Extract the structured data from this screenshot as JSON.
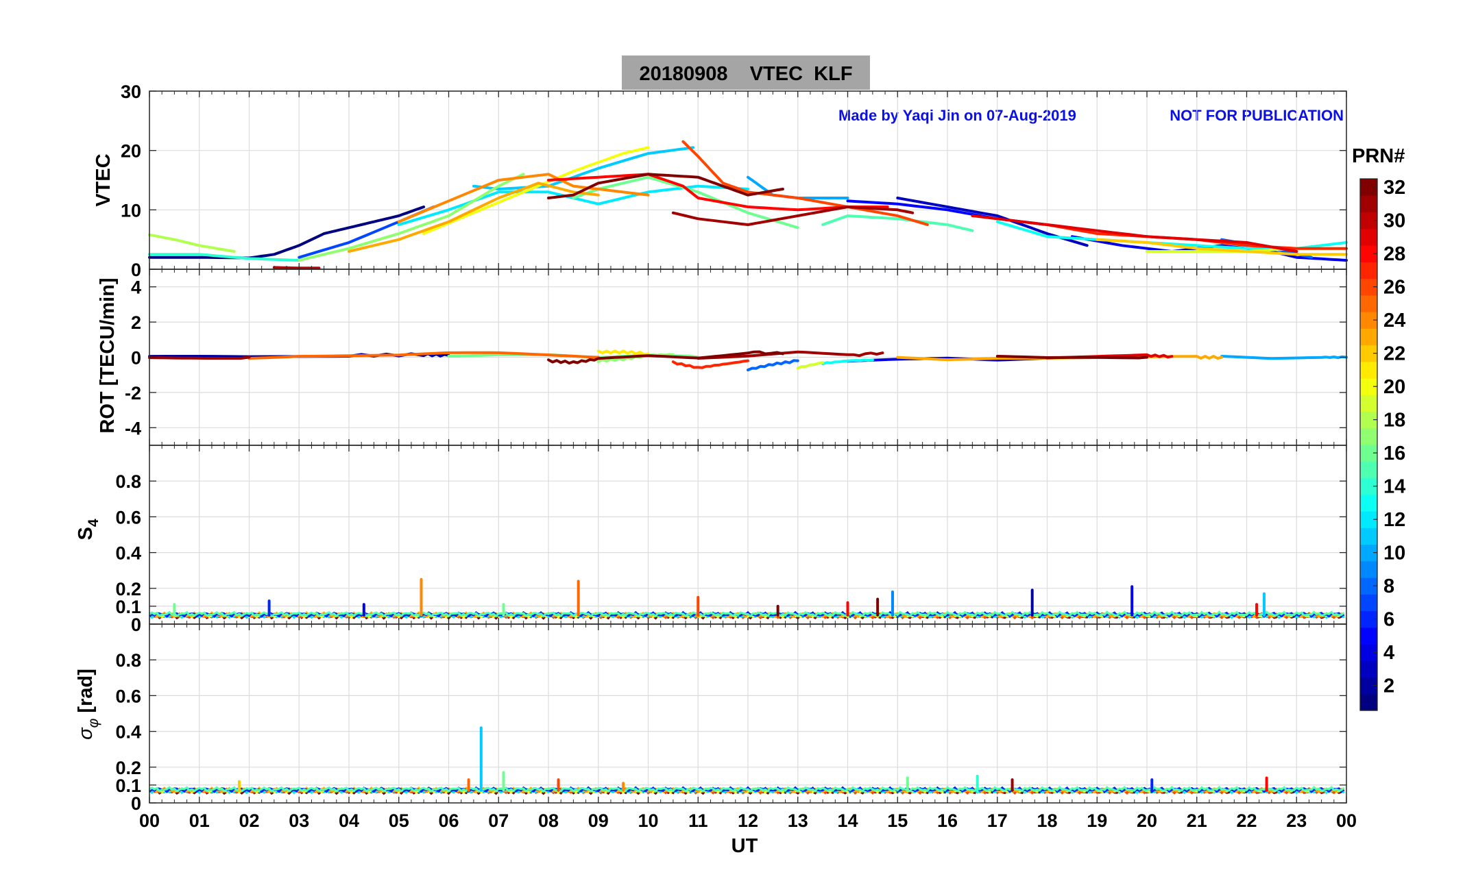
{
  "chart_data": {
    "type": "line",
    "title": "20180908    VTEC  KLF",
    "annotations": {
      "made_by": "Made by Yaqi Jin on 07-Aug-2019",
      "disclaimer": "NOT FOR PUBLICATION"
    },
    "xlabel": "UT",
    "x_ticks": [
      "00",
      "01",
      "02",
      "03",
      "04",
      "05",
      "06",
      "07",
      "08",
      "09",
      "10",
      "11",
      "12",
      "13",
      "14",
      "15",
      "16",
      "17",
      "18",
      "19",
      "20",
      "21",
      "22",
      "23",
      "00"
    ],
    "xlim": [
      0,
      24
    ],
    "grid": true,
    "colorbar": {
      "label": "PRN#",
      "ticks": [
        "2",
        "4",
        "6",
        "8",
        "10",
        "12",
        "14",
        "16",
        "18",
        "20",
        "22",
        "24",
        "26",
        "28",
        "30",
        "32"
      ],
      "range": [
        1,
        32
      ],
      "colormap": "jet"
    },
    "panels": [
      {
        "id": "vtec",
        "ylabel": "VTEC",
        "ylim": [
          0,
          30
        ],
        "y_ticks": [
          "0",
          "10",
          "20",
          "30"
        ],
        "series": [
          {
            "prn": 1,
            "x": [
              0.0,
              1.0,
              2.0,
              2.5,
              3.0,
              3.5,
              4.0,
              4.5,
              5.0,
              5.5
            ],
            "y": [
              2.0,
              2.0,
              1.9,
              2.5,
              4.0,
              6.0,
              7.0,
              8.0,
              9.0,
              10.5
            ]
          },
          {
            "prn": 3,
            "x": [
              15.0,
              16.0,
              17.0,
              18.0,
              18.8
            ],
            "y": [
              12.0,
              10.5,
              9.0,
              6.0,
              4.0
            ]
          },
          {
            "prn": 4,
            "x": [
              18.5,
              19.5,
              20.5,
              21.5,
              22.5,
              23.0,
              24.0
            ],
            "y": [
              5.5,
              4.0,
              3.0,
              4.0,
              3.0,
              2.0,
              1.5
            ]
          },
          {
            "prn": 5,
            "x": [
              14.0,
              15.0,
              16.0,
              17.0,
              18.0
            ],
            "y": [
              11.5,
              11.0,
              10.0,
              8.5,
              7.5
            ]
          },
          {
            "prn": 7,
            "x": [
              3.0,
              4.0,
              5.0,
              5.7
            ],
            "y": [
              2.0,
              4.5,
              8.0,
              10.5
            ]
          },
          {
            "prn": 8,
            "x": [
              21.5,
              22.5,
              23.3
            ],
            "y": [
              5.0,
              3.5,
              2.0
            ]
          },
          {
            "prn": 10,
            "x": [
              12.0,
              12.5,
              13.0,
              14.0
            ],
            "y": [
              15.5,
              12.5,
              12.0,
              12.0
            ]
          },
          {
            "prn": 11,
            "x": [
              6.5,
              7.0,
              8.0,
              9.0,
              10.0,
              10.9
            ],
            "y": [
              14.0,
              13.5,
              14.0,
              17.0,
              19.5,
              20.5
            ]
          },
          {
            "prn": 12,
            "x": [
              5.0,
              6.0,
              7.0,
              8.0,
              9.0,
              10.0,
              11.0,
              12.0
            ],
            "y": [
              7.5,
              10.0,
              13.0,
              13.0,
              11.0,
              13.0,
              14.0,
              13.5
            ]
          },
          {
            "prn": 13,
            "x": [
              17.0,
              18.0,
              19.0,
              20.0,
              21.0,
              22.0,
              23.0,
              24.0
            ],
            "y": [
              8.0,
              5.5,
              5.0,
              4.5,
              4.0,
              3.5,
              3.5,
              4.5
            ]
          },
          {
            "prn": 14,
            "x": [
              0.0,
              1.0,
              2.0,
              3.0
            ],
            "y": [
              2.5,
              2.5,
              1.8,
              1.5
            ]
          },
          {
            "prn": 15,
            "x": [
              13.5,
              14.0,
              15.0,
              16.0,
              16.5
            ],
            "y": [
              7.5,
              9.0,
              8.5,
              7.5,
              6.5
            ]
          },
          {
            "prn": 16,
            "x": [
              8.5,
              9.0,
              10.0,
              11.0,
              12.0,
              13.0
            ],
            "y": [
              12.0,
              13.5,
              15.5,
              13.0,
              9.5,
              7.0
            ]
          },
          {
            "prn": 17,
            "x": [
              3.0,
              4.0,
              5.0,
              6.0,
              7.0,
              7.5
            ],
            "y": [
              1.5,
              3.5,
              6.0,
              9.0,
              14.0,
              16.0
            ]
          },
          {
            "prn": 18,
            "x": [
              0.0,
              0.5,
              1.0,
              1.7
            ],
            "y": [
              5.8,
              5.0,
              4.0,
              3.0
            ]
          },
          {
            "prn": 19,
            "x": [
              20.0,
              21.0,
              22.0,
              23.0,
              24.0
            ],
            "y": [
              3.0,
              3.0,
              3.0,
              3.5,
              3.5
            ]
          },
          {
            "prn": 20,
            "x": [
              5.5,
              6.5,
              7.5,
              8.5,
              9.5,
              10.0
            ],
            "y": [
              6.0,
              9.5,
              13.0,
              16.5,
              19.5,
              20.5
            ]
          },
          {
            "prn": 22,
            "x": [
              19.0,
              20.0,
              21.0,
              22.0,
              23.0,
              24.0
            ],
            "y": [
              5.0,
              4.5,
              3.5,
              3.0,
              2.5,
              2.5
            ]
          },
          {
            "prn": 23,
            "x": [
              4.0,
              5.0,
              6.0,
              7.0,
              7.8,
              8.5,
              9.0
            ],
            "y": [
              3.0,
              5.0,
              8.0,
              12.0,
              14.5,
              13.0,
              12.5
            ]
          },
          {
            "prn": 24,
            "x": [
              5.0,
              6.0,
              7.0,
              8.0,
              8.5,
              9.0,
              9.5,
              10.0
            ],
            "y": [
              8.0,
              11.5,
              15.0,
              16.0,
              14.0,
              13.5,
              13.0,
              12.5
            ]
          },
          {
            "prn": 26,
            "x": [
              10.7,
              11.0,
              11.5,
              12.0,
              13.0,
              14.0,
              15.0,
              15.6
            ],
            "y": [
              21.5,
              19.0,
              14.5,
              13.0,
              12.0,
              10.5,
              9.0,
              7.5
            ]
          },
          {
            "prn": 27,
            "x": [
              18.0,
              19.0,
              20.0,
              21.0,
              22.0,
              23.0,
              24.0
            ],
            "y": [
              7.5,
              6.0,
              5.5,
              5.0,
              4.0,
              3.5,
              3.5
            ]
          },
          {
            "prn": 28,
            "x": [
              8.0,
              9.0,
              10.0,
              10.7,
              11.0,
              12.0,
              13.0,
              14.0,
              14.8
            ],
            "y": [
              15.0,
              15.5,
              16.0,
              14.0,
              12.0,
              10.5,
              10.0,
              10.5,
              10.5
            ]
          },
          {
            "prn": 29,
            "x": [
              16.5,
              17.0,
              18.0,
              19.0,
              20.0,
              21.0,
              22.0,
              23.0
            ],
            "y": [
              9.0,
              8.5,
              7.5,
              6.5,
              5.5,
              5.0,
              4.5,
              3.0
            ]
          },
          {
            "prn": 30,
            "x": [
              2.5,
              3.0,
              3.4
            ],
            "y": [
              0.3,
              0.2,
              0.2
            ]
          },
          {
            "prn": 31,
            "x": [
              10.5,
              11.0,
              12.0,
              13.0,
              14.0,
              15.0,
              15.3
            ],
            "y": [
              9.5,
              8.5,
              7.5,
              9.0,
              10.5,
              10.0,
              9.5
            ]
          },
          {
            "prn": 32,
            "x": [
              8.0,
              8.5,
              9.0,
              10.0,
              11.0,
              11.5,
              12.0,
              12.7
            ],
            "y": [
              12.0,
              12.5,
              14.5,
              16.0,
              15.5,
              14.0,
              12.5,
              13.5
            ]
          }
        ]
      },
      {
        "id": "rot",
        "ylabel": "ROT [TECU/min]",
        "ylim": [
          -5,
          5
        ],
        "y_ticks": [
          "-4",
          "-2",
          "0",
          "2",
          "4"
        ],
        "series": [
          {
            "prn": 2,
            "x": [
              0.0,
              2.0,
              4.0,
              5.5,
              6.0
            ],
            "y": [
              0.0,
              0.0,
              0.1,
              0.15,
              0.1
            ]
          },
          {
            "prn": 4,
            "x": [
              14.0,
              15.0,
              16.0,
              17.0,
              18.0,
              19.0
            ],
            "y": [
              -0.25,
              -0.1,
              0.0,
              -0.1,
              0.0,
              0.0
            ]
          },
          {
            "prn": 8,
            "x": [
              12.0,
              12.5,
              13.0
            ],
            "y": [
              -0.7,
              -0.4,
              -0.2
            ]
          },
          {
            "prn": 10,
            "x": [
              21.5,
              22.5,
              23.5,
              24.0
            ],
            "y": [
              0.0,
              -0.1,
              0.0,
              0.0
            ]
          },
          {
            "prn": 13,
            "x": [
              13.5,
              14.0,
              14.5
            ],
            "y": [
              -0.35,
              -0.2,
              -0.15
            ]
          },
          {
            "prn": 16,
            "x": [
              6.0,
              7.0,
              8.0,
              9.0,
              10.0,
              11.0
            ],
            "y": [
              0.1,
              0.2,
              0.2,
              0.0,
              0.1,
              0.0
            ]
          },
          {
            "prn": 17,
            "x": [
              9.0,
              9.5,
              10.0,
              10.5
            ],
            "y": [
              -0.2,
              -0.1,
              0.1,
              0.15
            ]
          },
          {
            "prn": 19,
            "x": [
              13.0,
              13.5
            ],
            "y": [
              -0.6,
              -0.3
            ]
          },
          {
            "prn": 21,
            "x": [
              9.0,
              9.5,
              10.0
            ],
            "y": [
              0.3,
              0.3,
              0.2
            ]
          },
          {
            "prn": 23,
            "x": [
              15.0,
              16.0,
              17.0,
              18.0,
              19.0,
              20.0,
              21.0,
              21.5
            ],
            "y": [
              0.0,
              -0.1,
              0.0,
              0.0,
              0.0,
              0.0,
              0.0,
              0.0
            ]
          },
          {
            "prn": 25,
            "x": [
              2.0,
              3.0,
              4.0,
              5.0,
              6.0,
              7.0,
              8.0,
              9.0
            ],
            "y": [
              0.0,
              0.1,
              0.1,
              0.1,
              0.2,
              0.2,
              0.1,
              0.0
            ]
          },
          {
            "prn": 27,
            "x": [
              10.5,
              11.0,
              11.5,
              12.0
            ],
            "y": [
              -0.3,
              -0.6,
              -0.4,
              -0.2
            ]
          },
          {
            "prn": 29,
            "x": [
              18.0,
              19.0,
              20.0,
              20.5
            ],
            "y": [
              0.0,
              0.05,
              0.1,
              0.05
            ]
          },
          {
            "prn": 31,
            "x": [
              0.0,
              1.0,
              2.0
            ],
            "y": [
              0.0,
              0.0,
              0.0
            ]
          },
          {
            "prn": 31,
            "x": [
              11.0,
              12.0,
              13.0,
              14.0,
              14.7
            ],
            "y": [
              0.0,
              0.1,
              0.3,
              0.1,
              0.25
            ]
          },
          {
            "prn": 32,
            "x": [
              8.0,
              8.5,
              9.0,
              10.0,
              11.0,
              12.0,
              12.7
            ],
            "y": [
              -0.2,
              -0.3,
              -0.1,
              0.1,
              0.0,
              0.3,
              0.2
            ]
          },
          {
            "prn": 32,
            "x": [
              17.0,
              18.0,
              19.0,
              20.0
            ],
            "y": [
              0.0,
              -0.05,
              0.0,
              0.0
            ]
          }
        ]
      },
      {
        "id": "s4",
        "ylabel": "S4",
        "ylim": [
          0,
          1
        ],
        "y_ticks": [
          "0",
          "0.1",
          "0.2",
          "0.4",
          "0.6",
          "0.8"
        ],
        "baseline": 0.05,
        "spikes": [
          {
            "prn": 16,
            "x": 0.5,
            "y": 0.11
          },
          {
            "prn": 6,
            "x": 2.4,
            "y": 0.13
          },
          {
            "prn": 4,
            "x": 4.3,
            "y": 0.11
          },
          {
            "prn": 24,
            "x": 5.45,
            "y": 0.25
          },
          {
            "prn": 16,
            "x": 7.1,
            "y": 0.11
          },
          {
            "prn": 25,
            "x": 8.6,
            "y": 0.24
          },
          {
            "prn": 26,
            "x": 11.0,
            "y": 0.15
          },
          {
            "prn": 32,
            "x": 12.6,
            "y": 0.1
          },
          {
            "prn": 28,
            "x": 14.0,
            "y": 0.12
          },
          {
            "prn": 32,
            "x": 14.6,
            "y": 0.14
          },
          {
            "prn": 9,
            "x": 14.9,
            "y": 0.18
          },
          {
            "prn": 2,
            "x": 17.7,
            "y": 0.19
          },
          {
            "prn": 5,
            "x": 19.7,
            "y": 0.21
          },
          {
            "prn": 28,
            "x": 22.2,
            "y": 0.11
          },
          {
            "prn": 11,
            "x": 22.35,
            "y": 0.17
          }
        ]
      },
      {
        "id": "sigma_phi",
        "ylabel": "σφ [rad]",
        "ylim": [
          0,
          1
        ],
        "y_ticks": [
          "0",
          "0.1",
          "0.2",
          "0.4",
          "0.6",
          "0.8"
        ],
        "baseline": 0.07,
        "spikes": [
          {
            "prn": 11,
            "x": 6.65,
            "y": 0.42
          },
          {
            "prn": 16,
            "x": 7.1,
            "y": 0.17
          },
          {
            "prn": 25,
            "x": 6.4,
            "y": 0.13
          },
          {
            "prn": 26,
            "x": 8.2,
            "y": 0.13
          },
          {
            "prn": 24,
            "x": 9.5,
            "y": 0.11
          },
          {
            "prn": 14,
            "x": 16.6,
            "y": 0.15
          },
          {
            "prn": 16,
            "x": 15.2,
            "y": 0.14
          },
          {
            "prn": 31,
            "x": 17.3,
            "y": 0.13
          },
          {
            "prn": 6,
            "x": 20.1,
            "y": 0.13
          },
          {
            "prn": 28,
            "x": 22.4,
            "y": 0.14
          },
          {
            "prn": 22,
            "x": 1.8,
            "y": 0.12
          }
        ]
      }
    ]
  }
}
